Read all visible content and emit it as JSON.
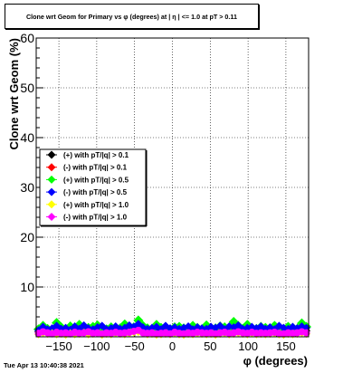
{
  "timestamp": "Tue Apr 13 10:40:38 2021",
  "chart_data": {
    "type": "scatter",
    "title": "Clone wrt Geom for Primary vs φ (degrees) at | η | <= 1.0 at pT > 0.11",
    "xlabel": "φ (degrees)",
    "ylabel": "Clone wrt Geom (%)",
    "xlim": [
      -180,
      180
    ],
    "ylim": [
      0,
      60
    ],
    "xticks": [
      -150,
      -100,
      -50,
      0,
      50,
      100,
      150
    ],
    "xtick_labels": [
      "−150",
      "−100",
      "−50",
      "0",
      "50",
      "100",
      "150"
    ],
    "yticks": [
      10,
      20,
      30,
      40,
      50,
      60
    ],
    "ytick_labels": [
      "10",
      "20",
      "30",
      "40",
      "50",
      "60"
    ],
    "grid": true,
    "legend_position": "left",
    "series": [
      {
        "name": "(+) with pT/|q| > 0.1",
        "color": "#000000"
      },
      {
        "name": "(-) with pT/|q| > 0.1",
        "color": "#ff0000"
      },
      {
        "name": "(+) with pT/|q| > 0.5",
        "color": "#00ff00"
      },
      {
        "name": "(-) with pT/|q| > 0.5",
        "color": "#0000ff"
      },
      {
        "name": "(+) with pT/|q| > 1.0",
        "color": "#ffff00"
      },
      {
        "name": "(-) with pT/|q| > 1.0",
        "color": "#ff00ff"
      }
    ],
    "x": [
      -177,
      -171,
      -165,
      -159,
      -153,
      -147,
      -141,
      -135,
      -129,
      -123,
      -117,
      -111,
      -105,
      -99,
      -93,
      -87,
      -81,
      -75,
      -69,
      -63,
      -57,
      -51,
      -45,
      -39,
      -33,
      -27,
      -21,
      -15,
      -9,
      -3,
      3,
      9,
      15,
      21,
      27,
      33,
      39,
      45,
      51,
      57,
      63,
      69,
      75,
      81,
      87,
      93,
      99,
      105,
      111,
      117,
      123,
      129,
      135,
      141,
      147,
      153,
      159,
      165,
      171,
      177
    ],
    "values": [
      [
        1.0,
        1.6,
        1.2,
        1.4,
        0.9,
        1.1,
        1.3,
        0.9,
        1.2,
        1.0,
        1.4,
        1.0,
        1.2,
        1.5,
        1.1,
        0.9,
        1.1,
        1.3,
        1.0,
        1.2,
        1.4,
        1.6,
        1.8,
        1.3,
        1.0,
        0.9,
        1.1,
        0.8,
        1.0,
        1.2,
        1.1,
        0.9,
        1.0,
        0.8,
        1.1,
        1.3,
        1.0,
        0.9,
        1.1,
        1.0,
        1.2,
        1.4,
        1.0,
        1.3,
        1.4,
        1.2,
        1.0,
        1.1,
        1.3,
        1.5,
        1.1,
        1.0,
        1.2,
        1.0,
        0.9,
        1.1,
        1.3,
        1.0,
        1.6,
        1.2
      ],
      [
        1.2,
        1.8,
        1.4,
        1.1,
        1.6,
        1.3,
        1.0,
        1.2,
        1.5,
        1.1,
        1.3,
        1.2,
        1.0,
        1.6,
        1.4,
        1.1,
        1.3,
        1.2,
        1.0,
        1.4,
        1.5,
        1.7,
        2.0,
        1.4,
        1.2,
        1.0,
        1.3,
        1.1,
        1.2,
        1.0,
        1.3,
        1.1,
        1.2,
        1.0,
        1.3,
        1.5,
        1.1,
        1.2,
        1.0,
        1.2,
        1.4,
        1.6,
        1.2,
        1.4,
        1.5,
        1.3,
        1.1,
        1.2,
        1.4,
        1.6,
        1.2,
        1.1,
        1.3,
        1.2,
        1.0,
        1.2,
        1.4,
        1.2,
        1.8,
        1.3
      ],
      [
        1.5,
        2.2,
        1.6,
        1.4,
        2.8,
        1.9,
        1.5,
        2.1,
        1.7,
        2.4,
        1.6,
        1.8,
        2.0,
        2.3,
        1.7,
        1.5,
        1.9,
        1.6,
        1.7,
        2.5,
        1.8,
        1.9,
        3.3,
        2.2,
        1.7,
        1.5,
        2.4,
        1.8,
        1.6,
        1.5,
        1.9,
        2.0,
        1.7,
        1.6,
        2.2,
        1.8,
        1.5,
        2.3,
        1.6,
        1.7,
        2.1,
        1.9,
        1.8,
        3.0,
        2.2,
        1.6,
        2.4,
        1.7,
        1.6,
        2.0,
        1.8,
        1.7,
        2.2,
        1.9,
        1.6,
        2.0,
        1.8,
        1.6,
        2.7,
        2.0
      ],
      [
        1.3,
        2.0,
        1.5,
        1.7,
        2.2,
        1.6,
        1.8,
        1.4,
        2.1,
        1.6,
        2.3,
        1.7,
        1.5,
        1.9,
        2.2,
        1.5,
        1.7,
        2.1,
        1.6,
        1.8,
        2.3,
        2.0,
        2.6,
        1.9,
        1.6,
        1.8,
        2.0,
        1.5,
        2.2,
        1.7,
        1.9,
        1.6,
        1.8,
        2.1,
        1.5,
        1.9,
        1.7,
        1.6,
        2.0,
        1.8,
        2.2,
        1.5,
        2.1,
        1.9,
        2.3,
        1.6,
        1.8,
        2.0,
        1.7,
        2.1,
        1.6,
        1.9,
        1.5,
        2.2,
        1.8,
        1.6,
        2.0,
        1.7,
        2.1,
        1.8
      ],
      [
        0.5,
        0.8,
        0.6,
        0.7,
        0.5,
        0.6,
        0.4,
        0.7,
        0.5,
        0.6,
        0.8,
        0.5,
        0.6,
        0.7,
        0.4,
        0.6,
        0.5,
        0.7,
        0.6,
        0.5,
        0.7,
        0.9,
        1.0,
        0.7,
        0.5,
        0.6,
        0.4,
        0.5,
        0.6,
        0.5,
        0.7,
        0.5,
        0.4,
        0.6,
        0.5,
        0.7,
        0.6,
        0.5,
        0.6,
        0.4,
        0.6,
        0.7,
        0.5,
        0.6,
        0.8,
        0.6,
        0.5,
        0.7,
        0.5,
        0.6,
        0.5,
        0.6,
        0.7,
        0.5,
        0.4,
        0.6,
        0.5,
        0.6,
        0.8,
        0.6
      ],
      [
        0.7,
        1.0,
        0.8,
        0.6,
        0.9,
        0.7,
        0.8,
        0.6,
        0.9,
        0.7,
        0.8,
        1.0,
        0.7,
        0.8,
        0.6,
        0.8,
        0.7,
        0.9,
        0.7,
        0.8,
        0.9,
        1.1,
        1.3,
        0.8,
        0.7,
        0.8,
        0.6,
        0.7,
        0.8,
        0.6,
        0.9,
        0.7,
        0.6,
        0.8,
        0.7,
        0.9,
        0.8,
        0.7,
        0.8,
        0.6,
        0.8,
        0.9,
        0.7,
        0.8,
        1.0,
        0.8,
        0.7,
        0.9,
        0.7,
        0.8,
        0.7,
        0.8,
        0.9,
        0.7,
        0.6,
        0.8,
        0.7,
        0.8,
        1.0,
        0.8
      ]
    ]
  }
}
